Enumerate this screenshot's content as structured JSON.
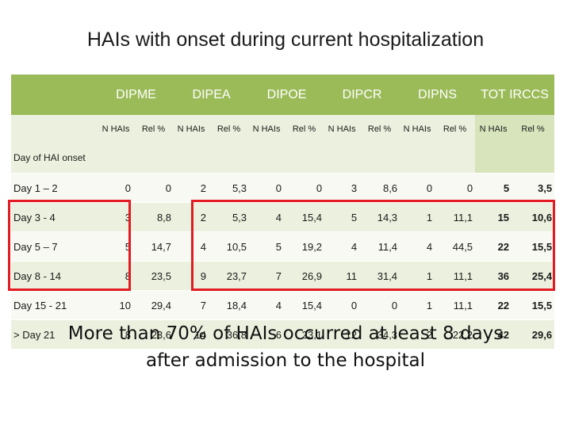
{
  "title": "HAIs with onset during current hospitalization",
  "groups": [
    "DIPME",
    "DIPEA",
    "DIPOE",
    "DIPCR",
    "DIPNS",
    "TOT IRCCS"
  ],
  "subheaders": [
    "N HAIs",
    "Rel %",
    "N HAIs",
    "Rel %",
    "N HAIs",
    "Rel %",
    "N HAIs",
    "Rel %",
    "N HAIs",
    "Rel %",
    "N HAIs",
    "Rel %"
  ],
  "row_header": "Day of HAI onset",
  "rows": [
    {
      "label": "Day 1 – 2",
      "values": [
        "0",
        "0",
        "2",
        "5,3",
        "0",
        "0",
        "3",
        "8,6",
        "0",
        "0",
        "5",
        "3,5"
      ]
    },
    {
      "label": "Day 3 - 4",
      "values": [
        "3",
        "8,8",
        "2",
        "5,3",
        "4",
        "15,4",
        "5",
        "14,3",
        "1",
        "11,1",
        "15",
        "10,6"
      ]
    },
    {
      "label": "Day 5 – 7",
      "values": [
        "5",
        "14,7",
        "4",
        "10,5",
        "5",
        "19,2",
        "4",
        "11,4",
        "4",
        "44,5",
        "22",
        "15,5"
      ]
    },
    {
      "label": "Day 8 - 14",
      "values": [
        "8",
        "23,5",
        "9",
        "23,7",
        "7",
        "26,9",
        "11",
        "31,4",
        "1",
        "11,1",
        "36",
        "25,4"
      ]
    },
    {
      "label": "Day 15 - 21",
      "values": [
        "10",
        "29,4",
        "7",
        "18,4",
        "4",
        "15,4",
        "0",
        "0",
        "1",
        "11,1",
        "22",
        "15,5"
      ]
    },
    {
      "label": "> Day 21",
      "values": [
        "8",
        "23,6",
        "14",
        "36,8",
        "6",
        "23,1",
        "12",
        "34,3",
        "2",
        "22,2",
        "42",
        "29,6"
      ]
    }
  ],
  "conclusion_line1": "More than 70%  of HAIs occurred at least 8 days",
  "conclusion_line2": "after admission to the hospital",
  "colors": {
    "header": "#9bbb59",
    "row_light": "#ebf1de",
    "highlight": "#e31b23"
  }
}
